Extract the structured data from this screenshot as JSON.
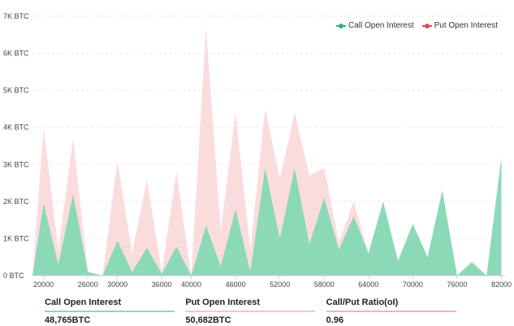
{
  "legend": {
    "call_label": "Call Open Interest",
    "put_label": "Put  Open Interest"
  },
  "colors": {
    "call_fill": "#8cd9b8",
    "call_legend": "#33b37f",
    "put_fill": "#fbdada",
    "put_legend": "#e8475a",
    "ratio_line": "#f7b3b3",
    "grid": "#e8e8e8"
  },
  "summary": [
    {
      "label": "Call Open Interest",
      "value": "48,765",
      "unit": "BTC",
      "line_color": "#8cd9b8"
    },
    {
      "label": "Put Open Interest",
      "value": "50,682",
      "unit": "BTC",
      "line_color": "#f7c6c6"
    },
    {
      "label": "Call/Put Ratio(oI)",
      "value": "0.96",
      "unit": "",
      "line_color": "#f7b3b3"
    }
  ],
  "chart_data": {
    "type": "area",
    "title": "",
    "xlabel": "",
    "ylabel": "",
    "ylim": [
      0,
      7000
    ],
    "xlim": [
      18500,
      82500
    ],
    "grid": true,
    "legend_position": "top-right",
    "y_ticks": [
      0,
      1000,
      2000,
      3000,
      4000,
      5000,
      6000,
      7000
    ],
    "y_tick_labels": [
      "0 BTC",
      "1K BTC",
      "2K BTC",
      "3K BTC",
      "4K BTC",
      "5K BTC",
      "6K BTC",
      "7K BTC"
    ],
    "x_ticks": [
      20000,
      26000,
      30000,
      36000,
      40000,
      46000,
      52000,
      58000,
      64000,
      70000,
      76000,
      82000
    ],
    "x_tick_labels": [
      "20000",
      "26000",
      "30000",
      "36000",
      "40000",
      "46000",
      "52000",
      "58000",
      "64000",
      "70000",
      "76000",
      "82000"
    ],
    "series": [
      {
        "name": "Put  Open Interest",
        "x": [
          18500,
          20000,
          22000,
          24000,
          26000,
          28000,
          30000,
          32000,
          34000,
          36000,
          38000,
          40000,
          42000,
          44000,
          46000,
          48000,
          50000,
          52000,
          54000,
          56000,
          58000,
          60000,
          62000,
          64000,
          66000,
          68000,
          70000,
          72000,
          74000,
          76000,
          78000,
          80000,
          82000
        ],
        "values": [
          0,
          4000,
          700,
          3700,
          100,
          0,
          3100,
          600,
          2600,
          100,
          2800,
          0,
          6700,
          1200,
          4400,
          700,
          4500,
          2600,
          4400,
          2700,
          2900,
          900,
          2000,
          600,
          800,
          400,
          600,
          300,
          2300,
          0,
          400,
          0,
          0
        ]
      },
      {
        "name": "Call Open Interest",
        "x": [
          18500,
          20000,
          22000,
          24000,
          26000,
          28000,
          30000,
          32000,
          34000,
          36000,
          38000,
          40000,
          42000,
          44000,
          46000,
          48000,
          50000,
          52000,
          54000,
          56000,
          58000,
          60000,
          62000,
          64000,
          66000,
          68000,
          70000,
          72000,
          74000,
          76000,
          78000,
          80000,
          82000
        ],
        "values": [
          0,
          1950,
          300,
          2200,
          100,
          0,
          950,
          100,
          750,
          50,
          780,
          0,
          1350,
          250,
          1800,
          100,
          2900,
          1000,
          2900,
          850,
          2100,
          700,
          1600,
          600,
          2000,
          400,
          1400,
          500,
          2300,
          0,
          350,
          0,
          3200
        ]
      }
    ]
  }
}
